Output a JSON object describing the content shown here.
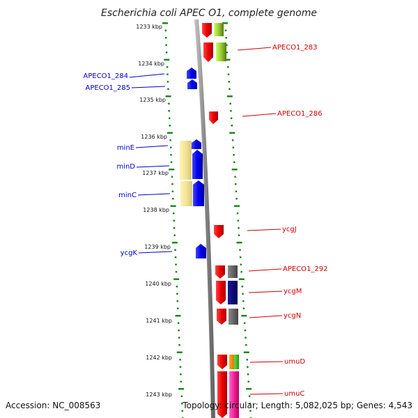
{
  "title": "Escherichia coli APEC O1, complete genome",
  "footer": {
    "accession": "Accession: NC_008563",
    "topology": "Topology: circular; Length: 5,082,025 bp; Genes: 4,543"
  },
  "ticks": [
    "1233 kbp",
    "1234 kbp",
    "1235 kbp",
    "1236 kbp",
    "1237 kbp",
    "1238 kbp",
    "1239 kbp",
    "1240 kbp",
    "1241 kbp",
    "1242 kbp",
    "1243 kbp"
  ],
  "left_labels": [
    "APECO1_284",
    "APECO1_285",
    "minE",
    "minD",
    "minC",
    "ycgK"
  ],
  "right_labels": [
    "APECO1_283",
    "APECO1_286",
    "ycgJ",
    "APECO1_292",
    "ycgM",
    "ycgN",
    "umuD",
    "umuC"
  ],
  "colors": {
    "forward_gene": "#ee0000",
    "reverse_gene": "#0000ee",
    "label_forward": "#cc0000",
    "label_reverse": "#0000cc",
    "backbone": "#888888",
    "ring_ticks": "#1a8a1a"
  }
}
